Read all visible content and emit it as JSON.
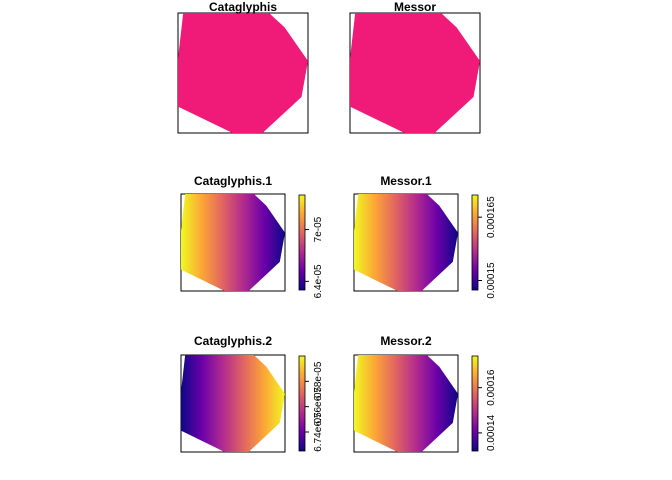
{
  "chart_data": [
    {
      "type": "heatmap",
      "title": "Cataglyphis",
      "colorbar": false,
      "fill": "#F01A78"
    },
    {
      "type": "heatmap",
      "title": "Messor",
      "colorbar": false,
      "fill": "#F01A78"
    },
    {
      "type": "heatmap",
      "title": "Cataglyphis.1",
      "colorbar": true,
      "gradient": "yellow-to-blue",
      "range": [
        6.3e-05,
        7.4e-05
      ],
      "ticks": [
        {
          "value": 6.4e-05,
          "label": "6.4e-05"
        },
        {
          "value": 7e-05,
          "label": "7e-05"
        }
      ]
    },
    {
      "type": "heatmap",
      "title": "Messor.1",
      "colorbar": true,
      "gradient": "yellow-to-blue",
      "range": [
        0.000142,
        0.000172
      ],
      "ticks": [
        {
          "value": 0.000145,
          "label": "0.00015"
        },
        {
          "value": 0.000165,
          "label": "0.000165"
        }
      ]
    },
    {
      "type": "heatmap",
      "title": "Cataglyphis.2",
      "colorbar": true,
      "gradient": "blue-to-yellow",
      "range": [
        6.725e-05,
        6.8e-05
      ],
      "ticks": [
        {
          "value": 6.74e-05,
          "label": "6.74e-05"
        },
        {
          "value": 6.76e-05,
          "label": "6.76e-05"
        },
        {
          "value": 6.78e-05,
          "label": "6.78e-05"
        }
      ]
    },
    {
      "type": "heatmap",
      "title": "Messor.2",
      "colorbar": true,
      "gradient": "yellow-to-blue",
      "range": [
        0.000132,
        0.000174
      ],
      "ticks": [
        {
          "value": 0.00014,
          "label": "0.00014"
        },
        {
          "value": 0.00016,
          "label": "0.00016"
        }
      ]
    }
  ],
  "colors": {
    "plasma_stops": [
      "#0D0887",
      "#6A00A8",
      "#B12A90",
      "#E16462",
      "#FCA636",
      "#F0F921"
    ],
    "frame": "#000000"
  }
}
